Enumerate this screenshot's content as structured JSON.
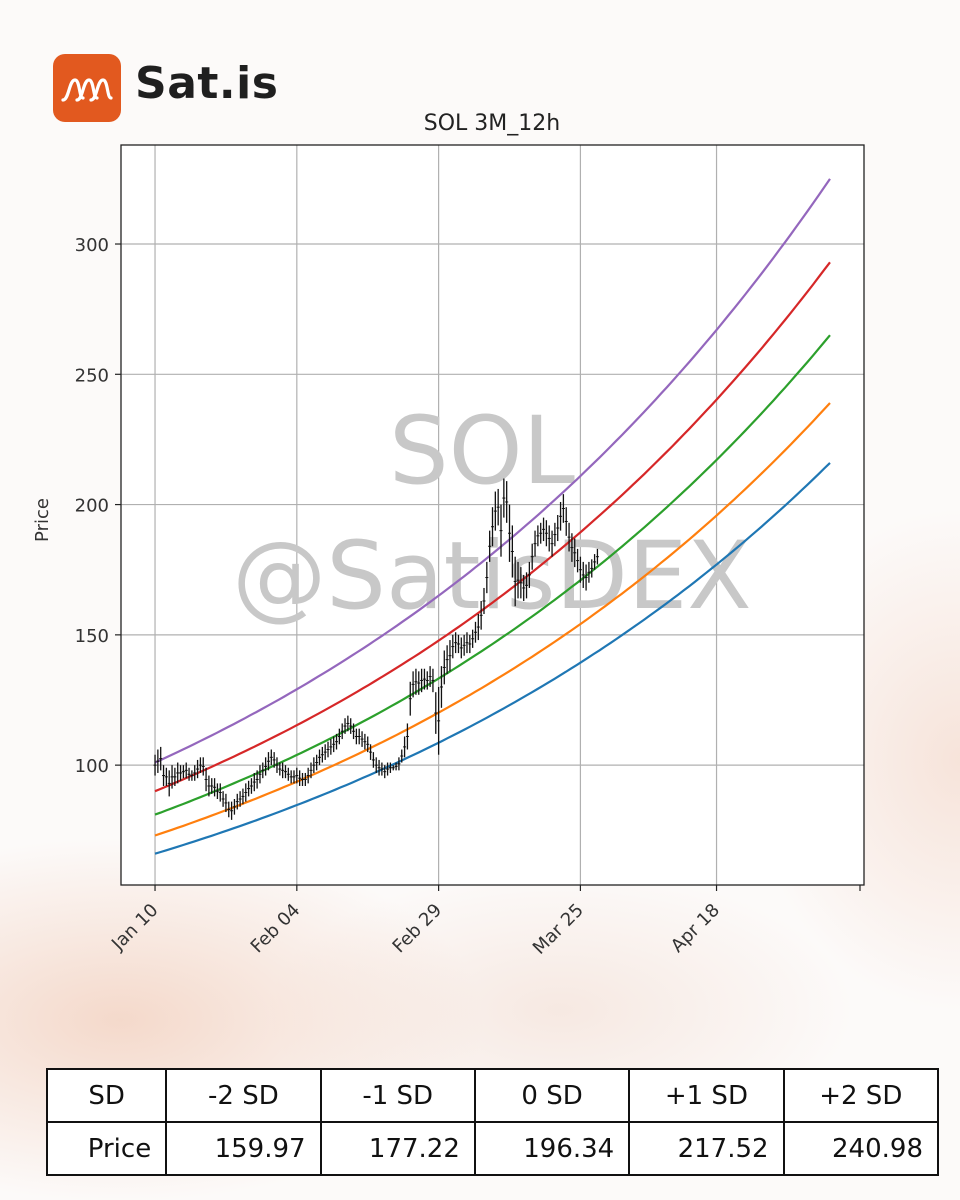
{
  "brand": {
    "name": "Sat.is",
    "logo_icon": "wave-logo-icon",
    "logo_color": "#e2591f"
  },
  "watermark": {
    "line1": "SOL",
    "line2": "@SatisDEX"
  },
  "chart_data": {
    "type": "line",
    "title": "SOL 3M_12h",
    "xlabel": "",
    "ylabel": "Price",
    "x_ticks": [
      "Jan 10",
      "Feb 04",
      "Feb 29",
      "Mar 25",
      "Apr 18"
    ],
    "x_tick_days": [
      0,
      25,
      50,
      75,
      99
    ],
    "y_ticks": [
      100,
      150,
      200,
      250,
      300
    ],
    "xlim_days": [
      -6,
      125
    ],
    "ylim": [
      54,
      338
    ],
    "grid": true,
    "series": [
      {
        "color": "#9467bd",
        "start": 101,
        "end": 325
      },
      {
        "color": "#d62728",
        "start": 90,
        "end": 293
      },
      {
        "color": "#2ca02c",
        "start": 81,
        "end": 265
      },
      {
        "color": "#ff7f0e",
        "start": 73,
        "end": 239
      },
      {
        "color": "#1f77b4",
        "start": 66,
        "end": 216
      }
    ],
    "band_x_days": [
      0,
      119
    ],
    "price_candles": {
      "start_day": 0,
      "step_days": 0.5,
      "high_low": [
        [
          104,
          96
        ],
        [
          106,
          97
        ],
        [
          107,
          98
        ],
        [
          100,
          92
        ],
        [
          99,
          92
        ],
        [
          98,
          88
        ],
        [
          100,
          91
        ],
        [
          99,
          92
        ],
        [
          101,
          93
        ],
        [
          100,
          94
        ],
        [
          100,
          95
        ],
        [
          101,
          95
        ],
        [
          99,
          94
        ],
        [
          98,
          94
        ],
        [
          100,
          94
        ],
        [
          102,
          95
        ],
        [
          103,
          97
        ],
        [
          103,
          96
        ],
        [
          99,
          90
        ],
        [
          96,
          88
        ],
        [
          95,
          89
        ],
        [
          95,
          88
        ],
        [
          93,
          87
        ],
        [
          93,
          86
        ],
        [
          90,
          84
        ],
        [
          89,
          82
        ],
        [
          86,
          80
        ],
        [
          86,
          79
        ],
        [
          87,
          81
        ],
        [
          89,
          83
        ],
        [
          90,
          84
        ],
        [
          91,
          85
        ],
        [
          93,
          86
        ],
        [
          94,
          88
        ],
        [
          95,
          89
        ],
        [
          97,
          90
        ],
        [
          98,
          91
        ],
        [
          100,
          93
        ],
        [
          101,
          95
        ],
        [
          103,
          96
        ],
        [
          105,
          98
        ],
        [
          106,
          100
        ],
        [
          105,
          99
        ],
        [
          103,
          97
        ],
        [
          101,
          96
        ],
        [
          101,
          95
        ],
        [
          100,
          95
        ],
        [
          99,
          94
        ],
        [
          98,
          93
        ],
        [
          98,
          93
        ],
        [
          99,
          93
        ],
        [
          98,
          92
        ],
        [
          97,
          92
        ],
        [
          97,
          92
        ],
        [
          99,
          93
        ],
        [
          101,
          95
        ],
        [
          103,
          97
        ],
        [
          104,
          98
        ],
        [
          106,
          100
        ],
        [
          107,
          101
        ],
        [
          108,
          102
        ],
        [
          109,
          103
        ],
        [
          110,
          104
        ],
        [
          111,
          105
        ],
        [
          112,
          106
        ],
        [
          114,
          108
        ],
        [
          116,
          110
        ],
        [
          118,
          112
        ],
        [
          119,
          113
        ],
        [
          118,
          112
        ],
        [
          116,
          110
        ],
        [
          114,
          108
        ],
        [
          114,
          108
        ],
        [
          113,
          107
        ],
        [
          112,
          106
        ],
        [
          111,
          105
        ],
        [
          108,
          102
        ],
        [
          105,
          99
        ],
        [
          103,
          97
        ],
        [
          102,
          96
        ],
        [
          101,
          96
        ],
        [
          100,
          95
        ],
        [
          101,
          96
        ],
        [
          101,
          97
        ],
        [
          100,
          98
        ],
        [
          101,
          98
        ],
        [
          103,
          98
        ],
        [
          106,
          101
        ],
        [
          111,
          103
        ],
        [
          116,
          106
        ],
        [
          132,
          119
        ],
        [
          136,
          126
        ],
        [
          137,
          127
        ],
        [
          136,
          127
        ],
        [
          137,
          128
        ],
        [
          137,
          129
        ],
        [
          136,
          129
        ],
        [
          138,
          130
        ],
        [
          137,
          128
        ],
        [
          128,
          112
        ],
        [
          130,
          104
        ],
        [
          138,
          122
        ],
        [
          144,
          131
        ],
        [
          146,
          135
        ],
        [
          148,
          136
        ],
        [
          150,
          141
        ],
        [
          151,
          143
        ],
        [
          150,
          143
        ],
        [
          149,
          141
        ],
        [
          150,
          142
        ],
        [
          151,
          143
        ],
        [
          150,
          143
        ],
        [
          152,
          145
        ],
        [
          155,
          147
        ],
        [
          158,
          148
        ],
        [
          163,
          152
        ],
        [
          168,
          158
        ],
        [
          178,
          166
        ],
        [
          190,
          178
        ],
        [
          199,
          184
        ],
        [
          205,
          190
        ],
        [
          206,
          192
        ],
        [
          200,
          180
        ],
        [
          210,
          195
        ],
        [
          209,
          193
        ],
        [
          200,
          178
        ],
        [
          192,
          172
        ],
        [
          180,
          161
        ],
        [
          178,
          164
        ],
        [
          176,
          164
        ],
        [
          173,
          163
        ],
        [
          174,
          164
        ],
        [
          178,
          168
        ],
        [
          185,
          175
        ],
        [
          190,
          180
        ],
        [
          192,
          184
        ],
        [
          193,
          185
        ],
        [
          195,
          186
        ],
        [
          194,
          184
        ],
        [
          192,
          182
        ],
        [
          190,
          180
        ],
        [
          193,
          184
        ],
        [
          196,
          186
        ],
        [
          201,
          190
        ],
        [
          204,
          193
        ],
        [
          199,
          188
        ],
        [
          193,
          182
        ],
        [
          189,
          178
        ],
        [
          187,
          176
        ],
        [
          183,
          174
        ],
        [
          180,
          170
        ],
        [
          178,
          168
        ],
        [
          177,
          167
        ],
        [
          178,
          170
        ],
        [
          179,
          172
        ],
        [
          181,
          175
        ],
        [
          183,
          177
        ]
      ]
    }
  },
  "sd_table": {
    "headers": [
      "SD",
      "-2 SD",
      "-1 SD",
      "0 SD",
      "+1 SD",
      "+2 SD"
    ],
    "row_label": "Price",
    "values": [
      "159.97",
      "177.22",
      "196.34",
      "217.52",
      "240.98"
    ]
  }
}
